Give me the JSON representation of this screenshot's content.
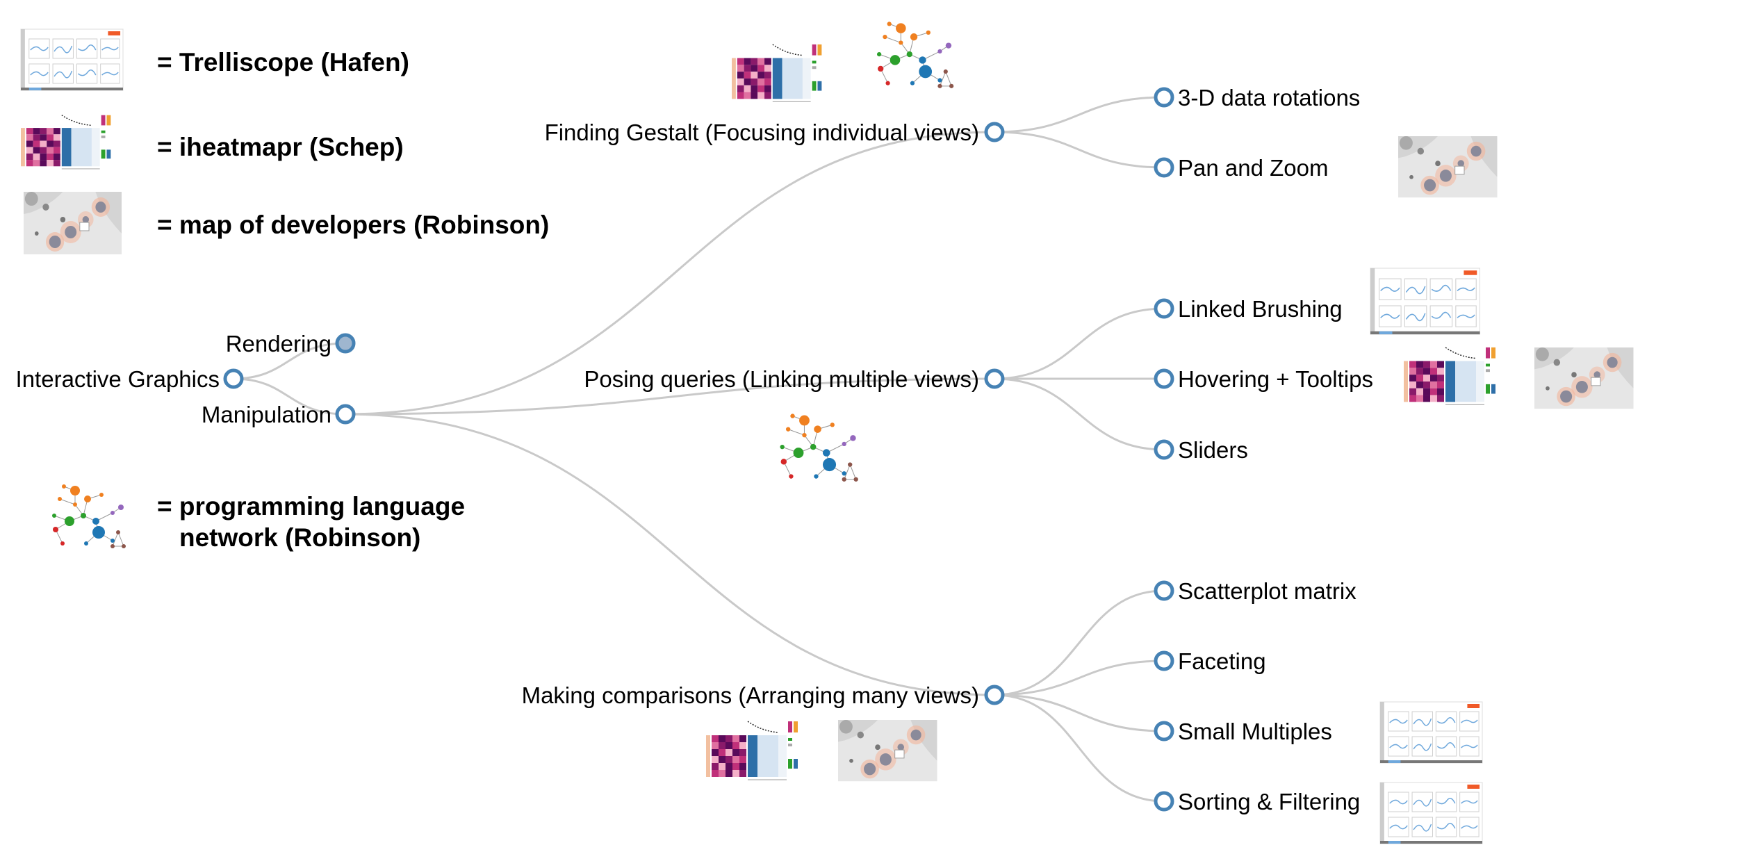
{
  "tree": {
    "root": "Interactive Graphics",
    "level1": [
      "Rendering",
      "Manipulation"
    ],
    "level2": [
      "Finding Gestalt (Focusing individual views)",
      "Posing queries (Linking multiple views)",
      "Making comparisons (Arranging many views)"
    ],
    "leaves": [
      "3-D data rotations",
      "Pan and Zoom",
      "Linked Brushing",
      "Hovering + Tooltips",
      "Sliders",
      "Scatterplot matrix",
      "Faceting",
      "Small Multiples",
      "Sorting & Filtering"
    ]
  },
  "legend": {
    "trelliscope": "= Trelliscope (Hafen)",
    "iheatmapr": "= iheatmapr (Schep)",
    "map": "= map of developers (Robinson)",
    "network_line1": "= programming language",
    "network_line2": "network (Robinson)"
  },
  "colors": {
    "node_stroke": "#4682b4",
    "collapsed_fill": "#9fb6cf",
    "link": "#c9c9c9",
    "trellis_badge": "#f05a28",
    "heat_dark": "#5a0a5a",
    "heat_mid": "#c0307a",
    "heat_light": "#f4b0c8",
    "map_bg": "#e6e6e6",
    "map_circle": "#f2b49a",
    "net_orange": "#f08020",
    "net_green": "#2ca02c",
    "net_blue": "#1f77b4",
    "net_purple": "#9467bd",
    "net_red": "#d62728",
    "net_brown": "#8c564b"
  },
  "icons": [
    "trelliscope-thumbnail-icon",
    "iheatmapr-thumbnail-icon",
    "map-thumbnail-icon",
    "network-thumbnail-icon"
  ]
}
